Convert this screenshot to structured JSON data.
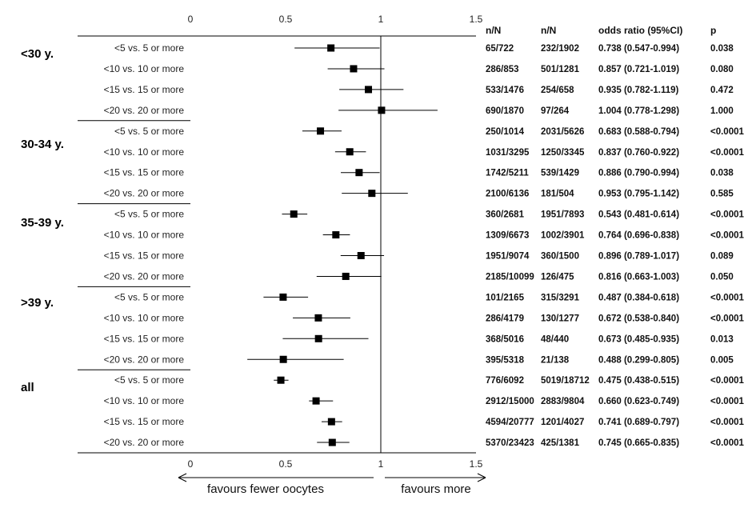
{
  "chart_data": {
    "type": "forest",
    "xlim": [
      0,
      1.5
    ],
    "x_ticks": [
      "0",
      "0.5",
      "1",
      "1.5"
    ],
    "reference_line": 1,
    "table_headers": [
      "n/N",
      "n/N",
      "odds ratio (95%CI)",
      "p"
    ],
    "direction_labels": {
      "left": "favours fewer oocytes",
      "right": "favours more"
    },
    "groups": [
      {
        "label": "<30 y.",
        "rows": [
          {
            "label": "<5 vs. 5 or more",
            "n1": "65/722",
            "n2": "232/1902",
            "or": 0.738,
            "lo": 0.547,
            "hi": 0.994,
            "or_text": "0.738 (0.547-0.994)",
            "p": "0.038"
          },
          {
            "label": "<10 vs. 10 or more",
            "n1": "286/853",
            "n2": "501/1281",
            "or": 0.857,
            "lo": 0.721,
            "hi": 1.019,
            "or_text": "0.857 (0.721-1.019)",
            "p": "0.080"
          },
          {
            "label": "<15 vs. 15 or more",
            "n1": "533/1476",
            "n2": "254/658",
            "or": 0.935,
            "lo": 0.782,
            "hi": 1.119,
            "or_text": "0.935 (0.782-1.119)",
            "p": "0.472"
          },
          {
            "label": "<20 vs. 20 or more",
            "n1": "690/1870",
            "n2": "97/264",
            "or": 1.004,
            "lo": 0.778,
            "hi": 1.298,
            "or_text": "1.004 (0.778-1.298)",
            "p": "1.000"
          }
        ]
      },
      {
        "label": "30-34 y.",
        "rows": [
          {
            "label": "<5 vs. 5 or more",
            "n1": "250/1014",
            "n2": "2031/5626",
            "or": 0.683,
            "lo": 0.588,
            "hi": 0.794,
            "or_text": "0.683 (0.588-0.794)",
            "p": "<0.0001"
          },
          {
            "label": "<10 vs. 10 or more",
            "n1": "1031/3295",
            "n2": "1250/3345",
            "or": 0.837,
            "lo": 0.76,
            "hi": 0.922,
            "or_text": "0.837 (0.760-0.922)",
            "p": "<0.0001"
          },
          {
            "label": "<15 vs. 15 or more",
            "n1": "1742/5211",
            "n2": "539/1429",
            "or": 0.886,
            "lo": 0.79,
            "hi": 0.994,
            "or_text": "0.886 (0.790-0.994)",
            "p": "0.038"
          },
          {
            "label": "<20 vs. 20 or more",
            "n1": "2100/6136",
            "n2": "181/504",
            "or": 0.953,
            "lo": 0.795,
            "hi": 1.142,
            "or_text": "0.953 (0.795-1.142)",
            "p": "0.585"
          }
        ]
      },
      {
        "label": "35-39 y.",
        "rows": [
          {
            "label": "<5 vs. 5 or more",
            "n1": "360/2681",
            "n2": "1951/7893",
            "or": 0.543,
            "lo": 0.481,
            "hi": 0.614,
            "or_text": "0.543 (0.481-0.614)",
            "p": "<0.0001"
          },
          {
            "label": "<10 vs. 10 or more",
            "n1": "1309/6673",
            "n2": "1002/3901",
            "or": 0.764,
            "lo": 0.696,
            "hi": 0.838,
            "or_text": "0.764 (0.696-0.838)",
            "p": "<0.0001"
          },
          {
            "label": "<15 vs. 15 or more",
            "n1": "1951/9074",
            "n2": "360/1500",
            "or": 0.896,
            "lo": 0.789,
            "hi": 1.017,
            "or_text": "0.896 (0.789-1.017)",
            "p": "0.089"
          },
          {
            "label": "<20 vs. 20 or more",
            "n1": "2185/10099",
            "n2": "126/475",
            "or": 0.816,
            "lo": 0.663,
            "hi": 1.003,
            "or_text": "0.816 (0.663-1.003)",
            "p": "0.050"
          }
        ]
      },
      {
        "label": ">39 y.",
        "rows": [
          {
            "label": "<5 vs. 5 or more",
            "n1": "101/2165",
            "n2": "315/3291",
            "or": 0.487,
            "lo": 0.384,
            "hi": 0.618,
            "or_text": "0.487 (0.384-0.618)",
            "p": "<0.0001"
          },
          {
            "label": "<10 vs. 10 or more",
            "n1": "286/4179",
            "n2": "130/1277",
            "or": 0.672,
            "lo": 0.538,
            "hi": 0.84,
            "or_text": "0.672 (0.538-0.840)",
            "p": "<0.0001"
          },
          {
            "label": "<15 vs. 15 or more",
            "n1": "368/5016",
            "n2": "48/440",
            "or": 0.673,
            "lo": 0.485,
            "hi": 0.935,
            "or_text": "0.673 (0.485-0.935)",
            "p": "0.013"
          },
          {
            "label": "<20 vs. 20 or more",
            "n1": "395/5318",
            "n2": "21/138",
            "or": 0.488,
            "lo": 0.299,
            "hi": 0.805,
            "or_text": "0.488 (0.299-0.805)",
            "p": "0.005"
          }
        ]
      },
      {
        "label": "all",
        "rows": [
          {
            "label": "<5 vs. 5 or more",
            "n1": "776/6092",
            "n2": "5019/18712",
            "or": 0.475,
            "lo": 0.438,
            "hi": 0.515,
            "or_text": "0.475 (0.438-0.515)",
            "p": "<0.0001"
          },
          {
            "label": "<10 vs. 10 or more",
            "n1": "2912/15000",
            "n2": "2883/9804",
            "or": 0.66,
            "lo": 0.623,
            "hi": 0.749,
            "or_text": "0.660 (0.623-0.749)",
            "p": "<0.0001"
          },
          {
            "label": "<15 vs. 15 or more",
            "n1": "4594/20777",
            "n2": "1201/4027",
            "or": 0.741,
            "lo": 0.689,
            "hi": 0.797,
            "or_text": "0.741 (0.689-0.797)",
            "p": "<0.0001"
          },
          {
            "label": "<20 vs. 20 or more",
            "n1": "5370/23423",
            "n2": "425/1381",
            "or": 0.745,
            "lo": 0.665,
            "hi": 0.835,
            "or_text": "0.745 (0.665-0.835)",
            "p": "<0.0001"
          }
        ]
      }
    ]
  }
}
